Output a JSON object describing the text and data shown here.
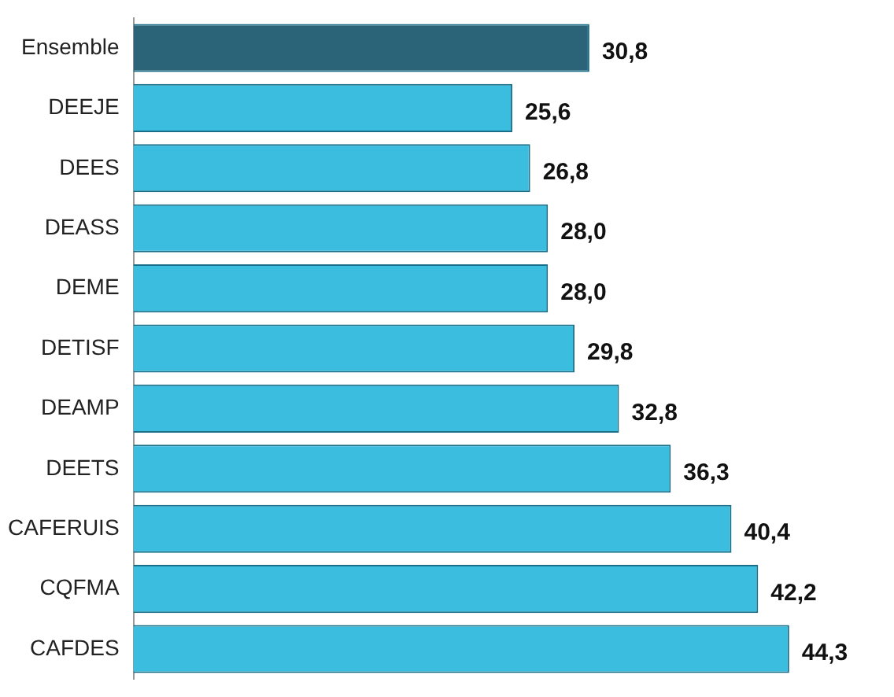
{
  "chart_data": {
    "type": "bar",
    "orientation": "horizontal",
    "categories": [
      "Ensemble",
      "DEEJE",
      "DEES",
      "DEASS",
      "DEME",
      "DETISF",
      "DEAMP",
      "DEETS",
      "CAFERUIS",
      "CQFMA",
      "CAFDES"
    ],
    "values": [
      30.8,
      25.6,
      26.8,
      28.0,
      28.0,
      29.8,
      32.8,
      36.3,
      40.4,
      42.2,
      44.3
    ],
    "colors": [
      "#2b6478",
      "#3bbde0",
      "#3bbde0",
      "#3bbde0",
      "#3bbde0",
      "#3bbde0",
      "#3bbde0",
      "#3bbde0",
      "#3bbde0",
      "#3bbde0",
      "#3bbde0"
    ],
    "value_labels": [
      "30,8",
      "25,6",
      "26,8",
      "28,0",
      "28,0",
      "29,8",
      "32,8",
      "36,3",
      "40,4",
      "42,2",
      "44,3"
    ],
    "tick_labels": "y"
  }
}
